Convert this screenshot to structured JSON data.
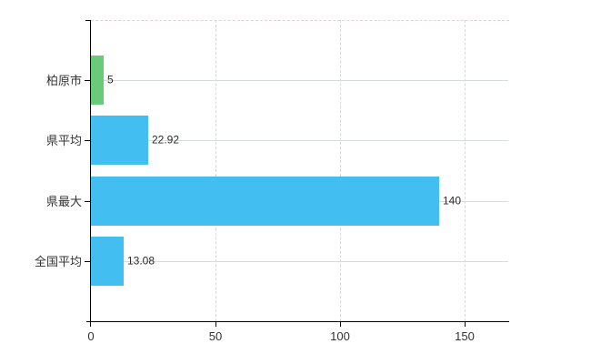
{
  "chart_data": {
    "type": "bar",
    "orientation": "horizontal",
    "title": "",
    "xlabel": "",
    "ylabel": "",
    "categories": [
      "柏原市",
      "県平均",
      "県最大",
      "全国平均"
    ],
    "values": [
      5,
      22.92,
      140,
      13.08
    ],
    "value_labels": [
      "5",
      "22.92",
      "140",
      "13.08"
    ],
    "bar_colors": [
      "#69ca79",
      "#42bff0",
      "#42bff0",
      "#42bff0"
    ],
    "x_ticks": [
      0,
      50,
      100,
      150
    ],
    "x_tick_labels": [
      "0",
      "50",
      "100",
      "150"
    ],
    "xlim": [
      0,
      168
    ],
    "grid": "on",
    "legend": "none"
  },
  "colors": {
    "background": "#ffffff",
    "axis": "#000000",
    "vertical_gridline": "#d8d8d8",
    "horizontal_gridline": "#d6dcd6",
    "plot_top_border": "#ded4d4",
    "bar_blue": "#42bff0",
    "bar_green": "#69ca79",
    "label_text": "#333333",
    "value_text": "#2b2b2b"
  }
}
